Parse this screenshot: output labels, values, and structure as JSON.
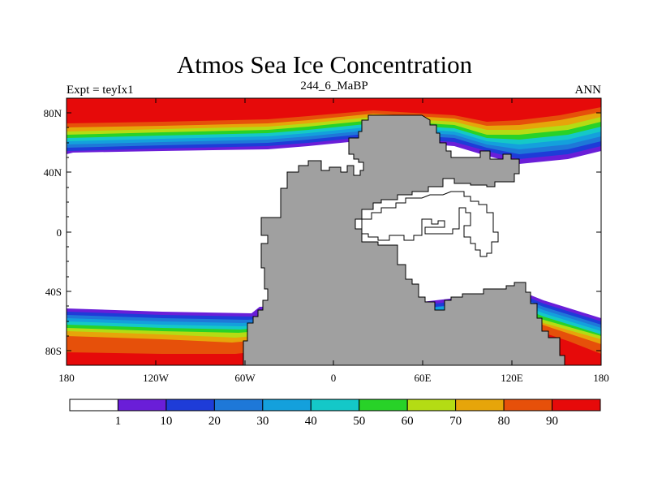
{
  "title": "Atmos Sea Ice Concentration",
  "subtitle_left": "Expt = teyIx1",
  "subtitle_center": "244_6_MaBP",
  "subtitle_right": "ANN",
  "map": {
    "y_labels": [
      "80N",
      "40N",
      "0",
      "40S",
      "80S"
    ],
    "x_labels": [
      "180",
      "120W",
      "60W",
      "0",
      "60E",
      "120E",
      "180"
    ],
    "land_color": "#a0a0a0",
    "ocean_color": "#ffffff"
  },
  "colorbar": {
    "labels": [
      "1",
      "10",
      "20",
      "30",
      "40",
      "50",
      "60",
      "70",
      "80",
      "90"
    ],
    "colors": [
      "#ffffff",
      "#6a1ed8",
      "#1e3cd8",
      "#1e78d8",
      "#14a0dc",
      "#14c8c8",
      "#28d228",
      "#b4dc14",
      "#e6a50a",
      "#e6500a",
      "#e60a0a"
    ]
  }
}
